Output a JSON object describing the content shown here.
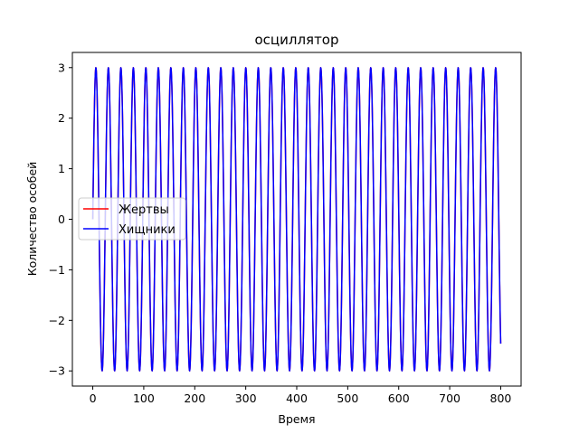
{
  "chart_data": {
    "type": "line",
    "title": "осциллятор",
    "xlabel": "Время",
    "ylabel": "Количество особей",
    "xlim": [
      -40,
      840
    ],
    "ylim": [
      -3.3,
      3.3
    ],
    "xticks": [
      0,
      100,
      200,
      300,
      400,
      500,
      600,
      700,
      800
    ],
    "yticks": [
      -3,
      -2,
      -1,
      0,
      1,
      2,
      3
    ],
    "grid": false,
    "legend_position": "center-left",
    "series": [
      {
        "name": "Жертвы",
        "color": "#ff0000",
        "amplitude": 3.0,
        "period": 24.5,
        "phase_offset": 0,
        "x_start": 0,
        "x_end": 800
      },
      {
        "name": "Хищники",
        "color": "#0000ff",
        "amplitude": 3.0,
        "period": 24.5,
        "phase_offset": 0,
        "x_start": 0,
        "x_end": 800
      }
    ]
  }
}
